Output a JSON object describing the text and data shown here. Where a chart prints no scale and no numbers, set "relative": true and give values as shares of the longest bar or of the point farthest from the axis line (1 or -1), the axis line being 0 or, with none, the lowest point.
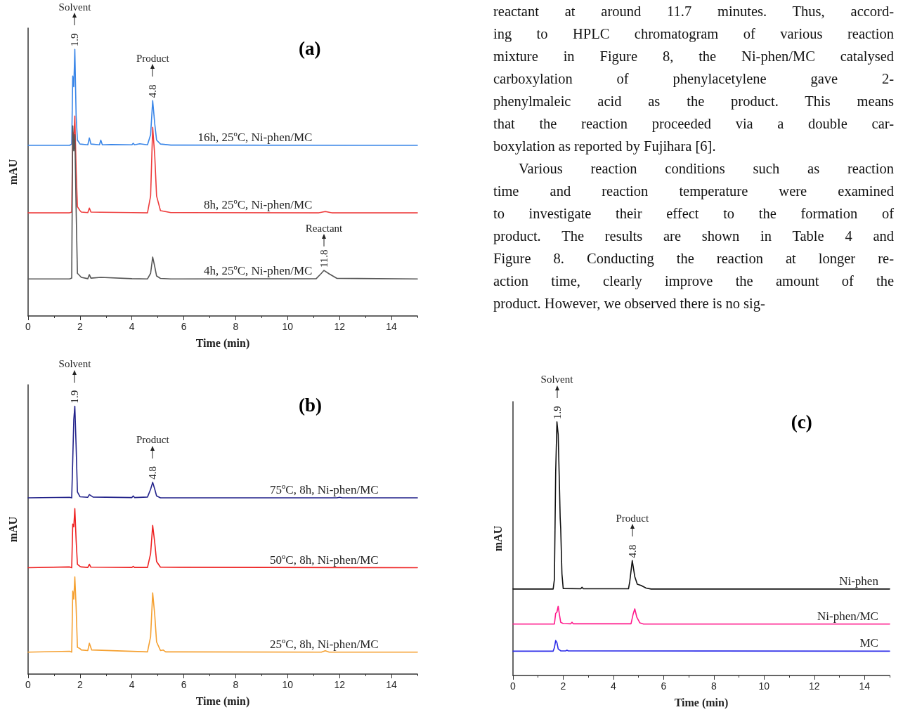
{
  "chart_data": [
    {
      "type": "line",
      "title": "(a)",
      "xlabel": "Time (min)",
      "ylabel": "mAU",
      "relative": true,
      "xlim": [
        0,
        15
      ],
      "xticks": [
        0,
        2,
        4,
        6,
        8,
        10,
        12,
        14
      ],
      "series": [
        {
          "name": "16h, 25ºC, Ni-phen/MC",
          "color": "#3a86e8",
          "x": [
            0,
            1.6,
            1.68,
            1.72,
            1.76,
            1.8,
            1.85,
            1.9,
            2.0,
            2.3,
            2.36,
            2.42,
            2.75,
            2.8,
            2.86,
            3.2,
            4.0,
            4.05,
            4.1,
            4.3,
            4.6,
            4.72,
            4.8,
            4.88,
            4.95,
            5.1,
            5.5,
            15
          ],
          "values": [
            0.64,
            0.64,
            0.645,
            0.9,
            0.86,
            1.0,
            0.75,
            0.66,
            0.645,
            0.642,
            0.668,
            0.645,
            0.642,
            0.66,
            0.642,
            0.643,
            0.642,
            0.648,
            0.642,
            0.646,
            0.642,
            0.68,
            0.808,
            0.72,
            0.66,
            0.645,
            0.641,
            0.64
          ]
        },
        {
          "name": "8h, 25ºC, Ni-phen/MC",
          "color": "#ee3b3b",
          "x": [
            0,
            1.6,
            1.68,
            1.72,
            1.76,
            1.8,
            1.85,
            1.9,
            2.0,
            2.05,
            2.3,
            2.36,
            2.42,
            2.8,
            4.0,
            4.6,
            4.72,
            4.8,
            4.88,
            4.95,
            5.1,
            5.5,
            11.2,
            11.45,
            11.7,
            15
          ],
          "values": [
            0.387,
            0.387,
            0.39,
            0.69,
            0.66,
            0.75,
            0.55,
            0.41,
            0.395,
            0.39,
            0.388,
            0.405,
            0.39,
            0.389,
            0.388,
            0.387,
            0.45,
            0.708,
            0.6,
            0.45,
            0.395,
            0.388,
            0.387,
            0.392,
            0.387,
            0.387
          ]
        },
        {
          "name": "4h, 25ºC, Ni-phen/MC",
          "color": "#555555",
          "x": [
            0,
            1.6,
            1.68,
            1.72,
            1.76,
            1.8,
            1.85,
            1.9,
            2.0,
            2.05,
            2.3,
            2.36,
            2.42,
            2.8,
            4.0,
            4.6,
            4.72,
            4.8,
            4.88,
            4.95,
            5.1,
            5.5,
            11.1,
            11.3,
            11.4,
            11.6,
            11.9,
            15
          ],
          "values": [
            0.139,
            0.139,
            0.142,
            0.713,
            0.62,
            0.68,
            0.4,
            0.16,
            0.15,
            0.145,
            0.14,
            0.155,
            0.142,
            0.145,
            0.14,
            0.139,
            0.16,
            0.221,
            0.185,
            0.15,
            0.141,
            0.139,
            0.14,
            0.16,
            0.171,
            0.158,
            0.141,
            0.139
          ]
        }
      ],
      "annotations": [
        {
          "text": "1.9",
          "x": 1.8,
          "y": 1
        },
        "Solvent",
        {
          "text": "4.8",
          "x": 4.8,
          "y": 0.808
        },
        "Product",
        {
          "text": "11.8",
          "x": 11.4,
          "y": 0.171
        },
        "Reactant"
      ]
    },
    {
      "type": "line",
      "title": "(b)",
      "xlabel": "Time (min)",
      "ylabel": "mAU",
      "relative": true,
      "xlim": [
        0,
        15
      ],
      "xticks": [
        0,
        2,
        4,
        6,
        8,
        10,
        12,
        14
      ],
      "series": [
        {
          "name": "75ºC, 8h, Ni-phen/MC",
          "color": "#22228a",
          "x": [
            0,
            1.6,
            1.68,
            1.72,
            1.76,
            1.8,
            1.85,
            1.9,
            2.0,
            2.3,
            2.36,
            2.5,
            4.0,
            4.05,
            4.1,
            4.6,
            4.72,
            4.8,
            4.88,
            4.95,
            5.1,
            11.9,
            12.0,
            12.1,
            15
          ],
          "values": [
            0.658,
            0.66,
            0.658,
            0.8,
            0.95,
            1.0,
            0.85,
            0.68,
            0.662,
            0.66,
            0.67,
            0.661,
            0.659,
            0.665,
            0.659,
            0.661,
            0.69,
            0.716,
            0.69,
            0.665,
            0.658,
            0.658,
            0.66,
            0.658,
            0.658
          ]
        },
        {
          "name": "50ºC, 8h, Ni-phen/MC",
          "color": "#ee2222",
          "x": [
            0,
            1.6,
            1.68,
            1.72,
            1.76,
            1.8,
            1.85,
            1.9,
            2.0,
            2.05,
            2.3,
            2.36,
            2.42,
            4.0,
            4.05,
            4.1,
            4.6,
            4.72,
            4.8,
            4.88,
            4.95,
            5.1,
            15
          ],
          "values": [
            0.397,
            0.4,
            0.397,
            0.56,
            0.55,
            0.618,
            0.5,
            0.41,
            0.402,
            0.4,
            0.398,
            0.41,
            0.399,
            0.398,
            0.402,
            0.398,
            0.398,
            0.45,
            0.555,
            0.49,
            0.42,
            0.399,
            0.397
          ]
        },
        {
          "name": "25ºC, 8h, Ni-phen/MC",
          "color": "#f5a030",
          "x": [
            0,
            1.6,
            1.68,
            1.72,
            1.76,
            1.8,
            1.85,
            1.9,
            2.0,
            2.05,
            2.3,
            2.36,
            2.45,
            4.6,
            4.72,
            4.8,
            4.88,
            4.95,
            5.1,
            5.2,
            5.3,
            11.3,
            11.45,
            11.6,
            15
          ],
          "values": [
            0.082,
            0.085,
            0.082,
            0.31,
            0.28,
            0.363,
            0.25,
            0.1,
            0.095,
            0.09,
            0.088,
            0.115,
            0.09,
            0.083,
            0.14,
            0.303,
            0.22,
            0.12,
            0.088,
            0.09,
            0.083,
            0.082,
            0.087,
            0.082,
            0.082
          ]
        }
      ],
      "annotations": [
        {
          "text": "1.9",
          "x": 1.8,
          "y": 1
        },
        "Solvent",
        {
          "text": "4.8",
          "x": 4.8,
          "y": 0.716
        },
        "Product"
      ]
    },
    {
      "type": "line",
      "title": "(c)",
      "xlabel": "Time (min)",
      "ylabel": "mAU",
      "relative": true,
      "xlim": [
        0,
        15
      ],
      "xticks": [
        0,
        2,
        4,
        6,
        8,
        10,
        12,
        14
      ],
      "series": [
        {
          "name": "Ni-phen",
          "color": "#111111",
          "x": [
            0,
            1.6,
            1.65,
            1.7,
            1.75,
            1.8,
            1.85,
            1.88,
            1.9,
            1.95,
            2.0,
            2.7,
            2.75,
            2.8,
            4.6,
            4.65,
            4.75,
            4.85,
            4.95,
            5.1,
            5.3,
            5.5,
            15
          ],
          "values": [
            0.341,
            0.341,
            0.38,
            0.8,
            1.0,
            0.95,
            0.75,
            0.62,
            0.58,
            0.4,
            0.343,
            0.342,
            0.348,
            0.342,
            0.342,
            0.37,
            0.453,
            0.39,
            0.36,
            0.355,
            0.345,
            0.341,
            0.341
          ]
        },
        {
          "name": "Ni-phen/MC",
          "color": "#ff1a8c",
          "x": [
            0,
            1.65,
            1.7,
            1.75,
            1.8,
            1.85,
            1.9,
            2.0,
            2.3,
            2.35,
            2.4,
            4.7,
            4.78,
            4.85,
            4.93,
            5.05,
            5.2,
            15
          ],
          "values": [
            0.203,
            0.203,
            0.245,
            0.25,
            0.273,
            0.24,
            0.21,
            0.205,
            0.204,
            0.21,
            0.204,
            0.204,
            0.24,
            0.263,
            0.23,
            0.208,
            0.203,
            0.203
          ]
        },
        {
          "name": "MC",
          "color": "#2a2ae8",
          "x": [
            0,
            1.6,
            1.65,
            1.7,
            1.75,
            1.8,
            1.9,
            2.1,
            2.15,
            2.2,
            15
          ],
          "values": [
            0.096,
            0.096,
            0.11,
            0.138,
            0.13,
            0.105,
            0.097,
            0.097,
            0.1,
            0.097,
            0.096
          ]
        }
      ],
      "annotations": [
        {
          "text": "1.9",
          "x": 1.75,
          "y": 1
        },
        "Solvent",
        {
          "text": "4.8",
          "x": 4.75,
          "y": 0.453
        },
        "Product"
      ]
    },
    {
      "type": "other",
      "annotations": [
        "reactant at around 11.7 minutes. Thus, accord-\ning to HPLC chromatogram of various reaction\nmixture in Figure 8, the Ni-phen/MC catalysed\ncarboxylation of phenylacetylene gave 2-\nphenylmaleic acid as the product. This means\nthat the reaction proceeded via a double car-\nboxylation as reported by Fujihara [6].",
        "Various reaction conditions such as reaction\ntime and reaction temperature were examined\nto investigate their effect to the formation of\nproduct. The results are shown in Table 4 and\nFigure 8. Conducting the reaction at longer re-\naction time, clearly improve the amount of the\nproduct. However, we observed there is no sig-"
      ]
    }
  ]
}
